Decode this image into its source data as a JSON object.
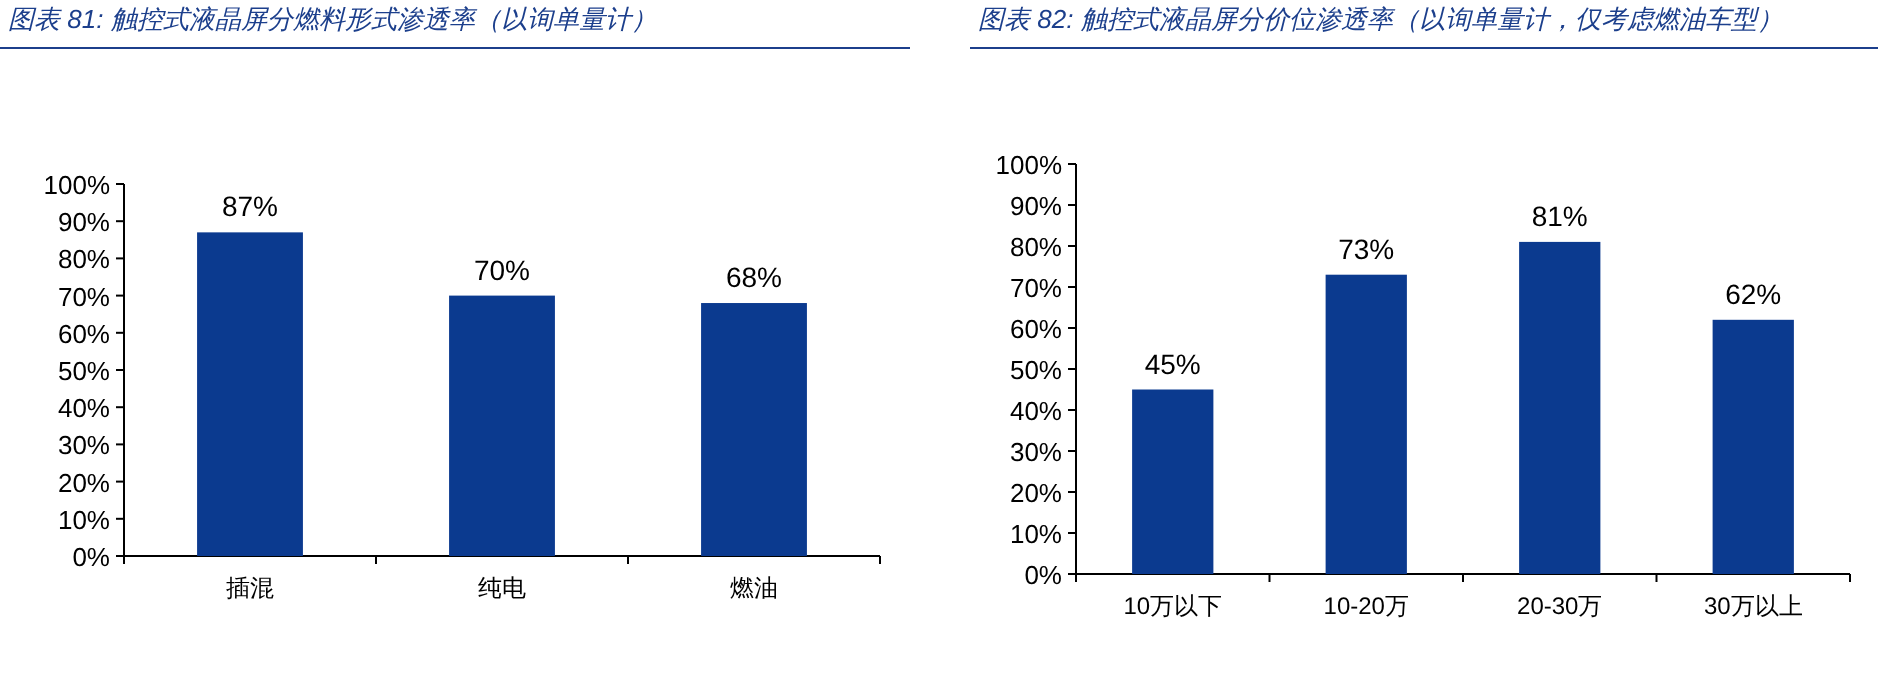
{
  "chart_data": [
    {
      "type": "bar",
      "title": "图表 81:  触控式液晶屏分燃料形式渗透率（以询单量计）",
      "categories": [
        "插混",
        "纯电",
        "燃油"
      ],
      "values": [
        87,
        70,
        68
      ],
      "color": "#0b3a8f",
      "ylim": [
        0,
        100
      ],
      "yticks": [
        {
          "value": 0,
          "label": "0%"
        },
        {
          "value": 10,
          "label": "10%"
        },
        {
          "value": 20,
          "label": "20%"
        },
        {
          "value": 30,
          "label": "30%"
        },
        {
          "value": 40,
          "label": "40%"
        },
        {
          "value": 50,
          "label": "50%"
        },
        {
          "value": 60,
          "label": "60%"
        },
        {
          "value": 70,
          "label": "70%"
        },
        {
          "value": 80,
          "label": "80%"
        },
        {
          "value": 90,
          "label": "90%"
        },
        {
          "value": 100,
          "label": "100%"
        }
      ],
      "value_labels": [
        "87%",
        "70%",
        "68%"
      ]
    },
    {
      "type": "bar",
      "title": "图表 82:  触控式液晶屏分价位渗透率（以询单量计，仅考虑燃油车型）",
      "categories": [
        "10万以下",
        "10-20万",
        "20-30万",
        "30万以上"
      ],
      "values": [
        45,
        73,
        81,
        62
      ],
      "color": "#0b3a8f",
      "ylim": [
        0,
        100
      ],
      "yticks": [
        {
          "value": 0,
          "label": "0%"
        },
        {
          "value": 10,
          "label": "10%"
        },
        {
          "value": 20,
          "label": "20%"
        },
        {
          "value": 30,
          "label": "30%"
        },
        {
          "value": 40,
          "label": "40%"
        },
        {
          "value": 50,
          "label": "50%"
        },
        {
          "value": 60,
          "label": "60%"
        },
        {
          "value": 70,
          "label": "70%"
        },
        {
          "value": 80,
          "label": "80%"
        },
        {
          "value": 90,
          "label": "90%"
        },
        {
          "value": 100,
          "label": "100%"
        }
      ],
      "value_labels": [
        "45%",
        "73%",
        "81%",
        "62%"
      ]
    }
  ]
}
